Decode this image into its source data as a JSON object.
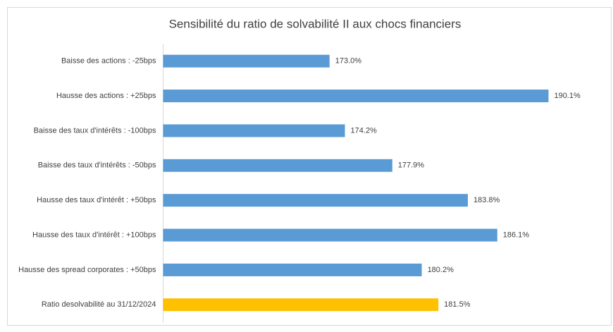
{
  "chart_data": {
    "type": "bar",
    "orientation": "horizontal",
    "title": "Sensibilité du ratio de solvabilité II aux chocs financiers",
    "categories": [
      "Baisse des actions : -25bps",
      "Hausse des actions : +25bps",
      "Baisse des taux d'intérêts : -100bps",
      "Baisse des taux d'intérêts : -50bps",
      "Hausse des taux d'intérêt : +50bps",
      "Hausse des taux d'intérêt : +100bps",
      "Hausse des spread corporates : +50bps",
      "Ratio desolvabilité au 31/12/2024"
    ],
    "values": [
      173.0,
      190.1,
      174.2,
      177.9,
      183.8,
      186.1,
      180.2,
      181.5
    ],
    "value_labels": [
      "173.0%",
      "190.1%",
      "174.2%",
      "177.9%",
      "183.8%",
      "186.1%",
      "180.2%",
      "181.5%"
    ],
    "colors": [
      "#5b9bd5",
      "#5b9bd5",
      "#5b9bd5",
      "#5b9bd5",
      "#5b9bd5",
      "#5b9bd5",
      "#5b9bd5",
      "#ffc000"
    ],
    "xlim": [
      160,
      195
    ]
  }
}
